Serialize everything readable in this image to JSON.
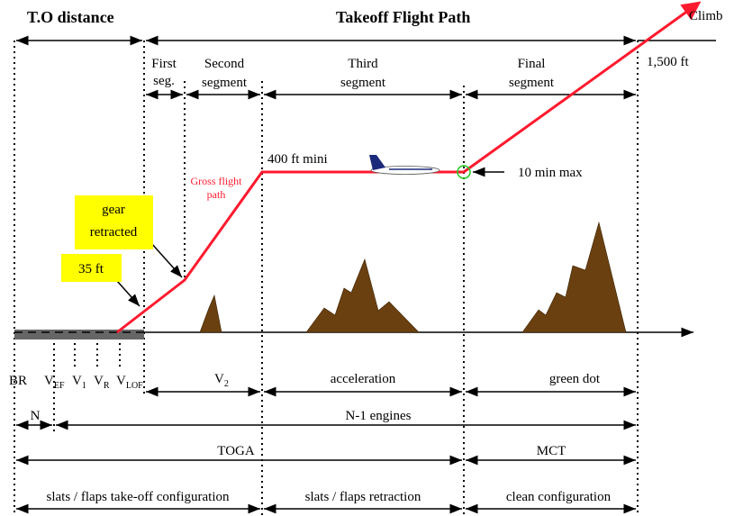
{
  "headers": {
    "to_distance": "T.O distance",
    "flight_path": "Takeoff Flight Path",
    "climb": "Climb",
    "alt_1500": "1,500 ft"
  },
  "segments": {
    "first_a": "First",
    "first_b": "seg.",
    "second_a": "Second",
    "second_b": "segment",
    "third_a": "Third",
    "third_b": "segment",
    "final_a": "Final",
    "final_b": "segment"
  },
  "annotations": {
    "alt_400": "400 ft mini",
    "gross_a": "Gross flight",
    "gross_b": "path",
    "ten_min": "10 min max",
    "gear_a": "gear",
    "gear_b": "retracted",
    "ft35": "35 ft"
  },
  "speeds": {
    "br": "BR",
    "vef": "V",
    "vef_sub": "EF",
    "v1": "V",
    "v1_sub": "1",
    "vr": "V",
    "vr_sub": "R",
    "vlof": "V",
    "vlof_sub": "LOF",
    "v2": "V",
    "v2_sub": "2",
    "acceleration": "acceleration",
    "green_dot": "green dot"
  },
  "engines": {
    "n": "N",
    "n1": "N-1 engines"
  },
  "thrust": {
    "toga": "TOGA",
    "mct": "MCT"
  },
  "config": {
    "takeoff": "slats / flaps take-off configuration",
    "retraction": "slats / flaps retraction",
    "clean": "clean configuration"
  },
  "colors": {
    "path": "#ff1a2e",
    "terrain": "#6b4010",
    "highlight": "#ffff00",
    "runway": "#666666",
    "green_dot": "#22cc22"
  }
}
